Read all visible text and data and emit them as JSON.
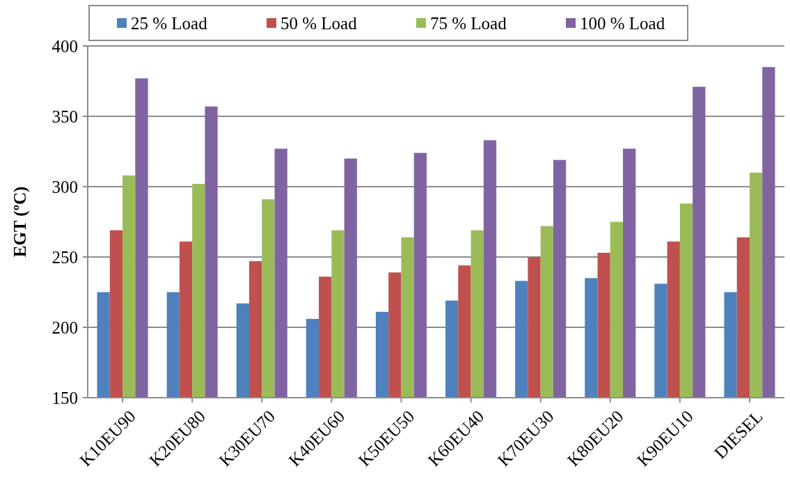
{
  "chart_data": {
    "type": "bar",
    "ylabel": "EGT (ºC)",
    "categories": [
      "K10EU90",
      "K20EU80",
      "K30EU70",
      "K40EU60",
      "K50EU50",
      "K60EU40",
      "K70EU30",
      "K80EU20",
      "K90EU10",
      "DIESEL"
    ],
    "series": [
      {
        "name": "25 % Load",
        "color": "#4f81bd",
        "values": [
          225,
          225,
          217,
          206,
          211,
          219,
          233,
          235,
          231,
          225
        ]
      },
      {
        "name": "50 % Load",
        "color": "#c0504d",
        "values": [
          269,
          261,
          247,
          236,
          239,
          244,
          250,
          253,
          261,
          264
        ]
      },
      {
        "name": "75 % Load",
        "color": "#9bbb59",
        "values": [
          308,
          302,
          291,
          269,
          264,
          269,
          272,
          275,
          288,
          310
        ]
      },
      {
        "name": "100 % Load",
        "color": "#8064a2",
        "values": [
          377,
          357,
          327,
          320,
          324,
          333,
          319,
          327,
          371,
          385
        ]
      }
    ],
    "ylim": [
      150,
      400
    ],
    "yticks": [
      150,
      200,
      250,
      300,
      350,
      400
    ],
    "grid": "y",
    "legend": "top"
  }
}
